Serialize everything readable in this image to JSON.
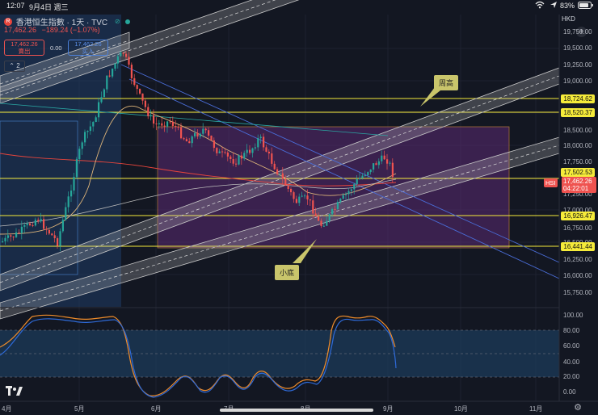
{
  "status_bar": {
    "time": "12:07",
    "date": "9月4日 週三",
    "battery": "83%",
    "wifi_icon": "wifi-icon",
    "battery_icon": "battery-icon"
  },
  "symbol": {
    "name": "香港恒生指數 · 1天 · TVC",
    "last": "17,462.26",
    "change": "−189.24 (−1.07%)",
    "sell_price": "17,462.26",
    "sell_label": "賣出",
    "spread": "0.00",
    "buy_price": "17,462.26",
    "buy_label": "买入",
    "collapse_count": "2",
    "logo_letter": "R"
  },
  "right_axis": {
    "currency": "HKD",
    "ticks": [
      "19,750.00",
      "19,500.00",
      "19,250.00",
      "19,000.00",
      "18,500.00",
      "18,000.00",
      "17,750.00",
      "17,250.00",
      "17,000.00",
      "16,750.00",
      "16,500.00",
      "16,250.00",
      "16,000.00",
      "15,750.00"
    ],
    "price_tags": {
      "t18724": "18,724.62",
      "t18520": "18,520.37",
      "t17502": "17,502.53",
      "t16926": "16,926.47",
      "t16441": "16,441.44"
    },
    "hsi_badge": "HSI",
    "hsi_price": "17,462.26",
    "hsi_timer": "04:22:01"
  },
  "osc_axis": {
    "ticks": [
      "100.00",
      "80.00",
      "60.00",
      "40.00",
      "20.00",
      "0.00"
    ]
  },
  "time_axis": {
    "labels": [
      "4月",
      "5月",
      "6月",
      "7月",
      "8月",
      "9月",
      "10月",
      "11月"
    ]
  },
  "annotations": {
    "weekly_high": "周高",
    "minor_bottom": "小底"
  },
  "brand": {
    "logo_icon": "tradingview-logo"
  },
  "colors": {
    "background": "#131722",
    "up": "#26a69a",
    "down": "#ef5350",
    "hline": "#f5eb3a",
    "channel": "#c8c8c8",
    "box": "#5b2a73",
    "stoch_k": "#ef8c2b",
    "stoch_d": "#2e6ad8"
  }
}
